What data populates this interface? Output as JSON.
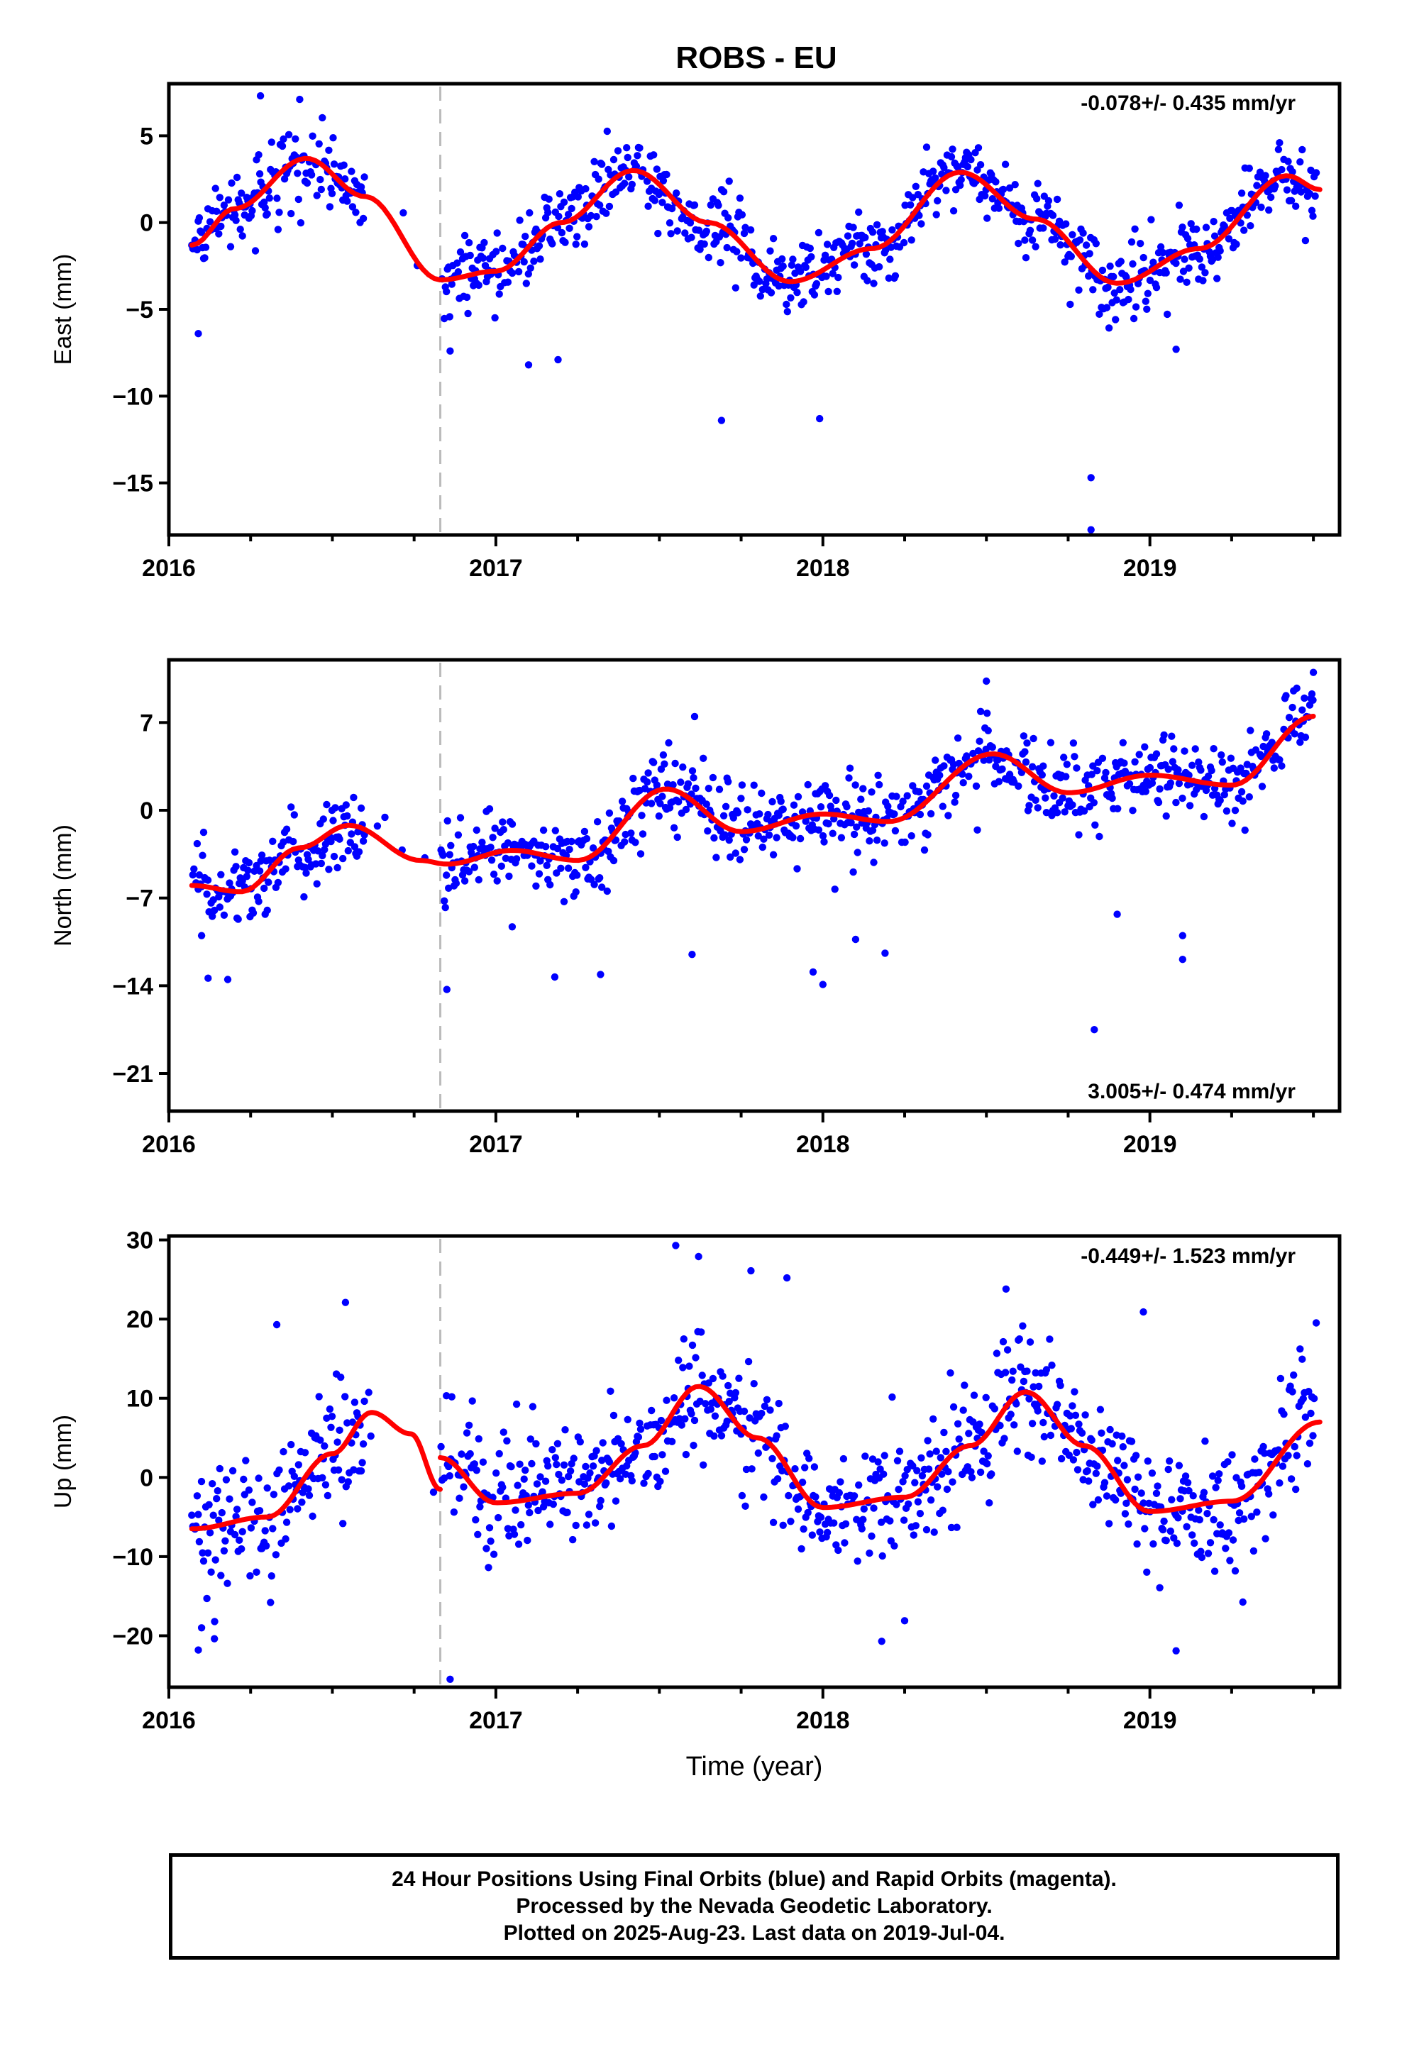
{
  "title": "ROBS - EU",
  "xlabel": "Time (year)",
  "footnote": {
    "lines": [
      "24 Hour Positions Using Final Orbits (blue) and Rapid Orbits (magenta).",
      "Processed by the Nevada Geodetic Laboratory.",
      "Plotted on 2025-Aug-23. Last data on 2019-Jul-04."
    ]
  },
  "colors": {
    "points": "#0000ff",
    "fit": "#ff0000",
    "event_line": "#bbbbbb",
    "frame": "#000000"
  },
  "chart_data": [
    {
      "type": "scatter",
      "name": "east",
      "ylabel": "East (mm)",
      "rate_label": "-0.078+/- 0.435 mm/yr",
      "rate_position": "top-right",
      "xlim": [
        2016.0,
        2019.58
      ],
      "ylim": [
        -18.0,
        8.0
      ],
      "xticks": [
        "2016",
        "2017",
        "2018",
        "2019"
      ],
      "yticks": [
        5,
        0,
        -5,
        -10,
        -15
      ],
      "yticks_text": [
        "5",
        "0",
        "−5",
        "−10",
        "−15"
      ],
      "event_line_x": 2016.83,
      "fit": {
        "x": [
          2016.07,
          2016.2,
          2016.42,
          2016.6,
          2016.83,
          2017.0,
          2017.2,
          2017.42,
          2017.65,
          2017.9,
          2018.15,
          2018.42,
          2018.65,
          2018.9,
          2019.15,
          2019.42,
          2019.52
        ],
        "y": [
          -1.3,
          0.8,
          3.7,
          1.5,
          -3.3,
          -2.8,
          0.0,
          3.0,
          0.0,
          -3.4,
          -1.5,
          2.9,
          0.2,
          -3.5,
          -1.5,
          2.7,
          1.9
        ]
      },
      "outliers": [
        [
          2016.09,
          -6.4
        ],
        [
          2016.28,
          7.3
        ],
        [
          2016.86,
          -7.4
        ],
        [
          2017.1,
          -8.2
        ],
        [
          2017.19,
          -7.9
        ],
        [
          2017.69,
          -11.4
        ],
        [
          2017.99,
          -11.3
        ],
        [
          2018.82,
          -14.7
        ],
        [
          2018.82,
          -17.7
        ],
        [
          2019.08,
          -7.3
        ]
      ]
    },
    {
      "type": "scatter",
      "name": "north",
      "ylabel": "North (mm)",
      "rate_label": "3.005+/- 0.474 mm/yr",
      "rate_position": "bottom-right",
      "xlim": [
        2016.0,
        2019.58
      ],
      "ylim": [
        -24.0,
        12.0
      ],
      "xticks": [
        "2016",
        "2017",
        "2018",
        "2019"
      ],
      "yticks": [
        7,
        0,
        -7,
        -14,
        -21
      ],
      "yticks_text": [
        "7",
        "0",
        "−7",
        "−14",
        "−21"
      ],
      "event_line_x": 2016.83,
      "fit": {
        "x": [
          2016.07,
          2016.22,
          2016.4,
          2016.55,
          2016.77,
          2016.85,
          2017.05,
          2017.25,
          2017.52,
          2017.75,
          2018.0,
          2018.2,
          2018.52,
          2018.75,
          2019.0,
          2019.25,
          2019.5
        ],
        "y": [
          -6.0,
          -6.5,
          -3.0,
          -1.2,
          -4.0,
          -4.3,
          -3.2,
          -4.0,
          1.7,
          -1.7,
          -0.3,
          -0.9,
          4.5,
          1.4,
          2.8,
          2.0,
          7.5
        ]
      },
      "outliers": [
        [
          2016.1,
          -10.0
        ],
        [
          2016.12,
          -13.4
        ],
        [
          2016.18,
          -13.5
        ],
        [
          2016.85,
          -14.3
        ],
        [
          2017.05,
          -9.3
        ],
        [
          2017.18,
          -13.3
        ],
        [
          2017.32,
          -13.1
        ],
        [
          2017.6,
          -11.5
        ],
        [
          2017.97,
          -12.9
        ],
        [
          2018.0,
          -13.9
        ],
        [
          2018.1,
          -10.3
        ],
        [
          2018.19,
          -11.4
        ],
        [
          2018.5,
          10.3
        ],
        [
          2018.83,
          -17.5
        ],
        [
          2018.9,
          -8.3
        ],
        [
          2019.1,
          -10.0
        ],
        [
          2019.1,
          -11.9
        ],
        [
          2019.5,
          11.0
        ]
      ]
    },
    {
      "type": "scatter",
      "name": "up",
      "ylabel": "Up (mm)",
      "rate_label": "-0.449+/- 1.523 mm/yr",
      "rate_position": "top-right",
      "xlim": [
        2016.0,
        2019.58
      ],
      "ylim": [
        -26.5,
        30.5
      ],
      "xticks": [
        "2016",
        "2017",
        "2018",
        "2019"
      ],
      "yticks": [
        30,
        20,
        10,
        0,
        -10,
        -20
      ],
      "yticks_text": [
        "30",
        "20",
        "10",
        "0",
        "−10",
        "−20"
      ],
      "event_line_x": 2016.83,
      "fit_segments": [
        {
          "x": [
            2016.07,
            2016.3,
            2016.5,
            2016.62,
            2016.74,
            2016.83
          ],
          "y": [
            -6.5,
            -5.0,
            3.0,
            8.2,
            5.5,
            -1.5
          ]
        },
        {
          "x": [
            2016.83,
            2017.0,
            2017.25,
            2017.45,
            2017.62,
            2017.8,
            2018.0,
            2018.25,
            2018.45,
            2018.62,
            2018.8,
            2019.0,
            2019.25,
            2019.52
          ],
          "y": [
            2.5,
            -3.2,
            -2.0,
            4.0,
            11.5,
            5.0,
            -3.8,
            -2.5,
            4.0,
            10.8,
            4.0,
            -4.3,
            -3.0,
            7.0
          ]
        }
      ],
      "outliers": [
        [
          2016.09,
          -21.8
        ],
        [
          2016.1,
          -19.0
        ],
        [
          2016.14,
          -18.2
        ],
        [
          2016.33,
          19.3
        ],
        [
          2016.54,
          22.1
        ],
        [
          2016.86,
          -25.5
        ],
        [
          2017.55,
          29.3
        ],
        [
          2017.62,
          27.9
        ],
        [
          2017.78,
          26.1
        ],
        [
          2017.89,
          25.2
        ],
        [
          2018.18,
          -20.7
        ],
        [
          2018.25,
          -18.1
        ],
        [
          2018.56,
          23.8
        ],
        [
          2018.98,
          20.9
        ],
        [
          2019.08,
          -21.9
        ]
      ]
    }
  ]
}
